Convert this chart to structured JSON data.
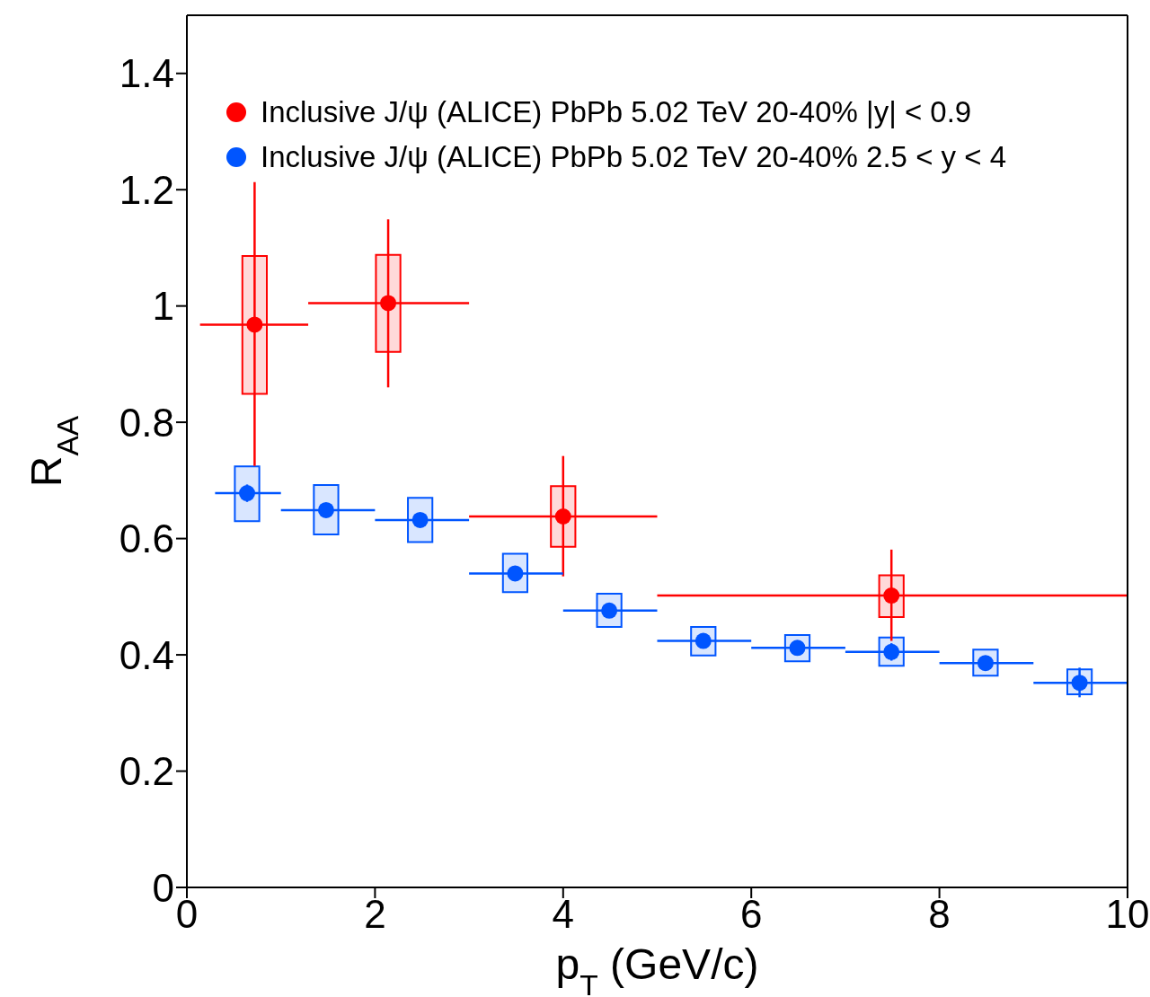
{
  "chart_data": {
    "type": "scatter",
    "xlabel": "p$_{T}$ (GeV/c)",
    "ylabel": "R$_{AA}$",
    "xlim": [
      0,
      10
    ],
    "xticks": [
      0,
      2,
      4,
      6,
      8,
      10
    ],
    "ylim": [
      0,
      1.5
    ],
    "yticks": [
      {
        "value": 0,
        "label": "0"
      },
      {
        "value": 0.2,
        "label": "0.2"
      },
      {
        "value": 0.4,
        "label": "0.4"
      },
      {
        "value": 0.6,
        "label": "0.6"
      },
      {
        "value": 0.8,
        "label": "0.8"
      },
      {
        "value": 1,
        "label": "1"
      },
      {
        "value": 1.2,
        "label": "1.2"
      },
      {
        "value": 1.4,
        "label": "1.4"
      }
    ],
    "grid": false,
    "legend": "top left",
    "marker": "circle",
    "series": [
      {
        "name": "Inclusive J/ψ (ALICE) PbPb 5.02 TeV 20-40% |y| < 0.9",
        "color": "#ff0000",
        "x": [
          0.72,
          2.14,
          4.0,
          7.49
        ],
        "values": [
          0.968,
          1.005,
          0.638,
          0.502
        ],
        "errors": [
          [
            0.725,
            1.213
          ],
          [
            0.86,
            1.149
          ],
          [
            0.535,
            0.742
          ],
          [
            0.424,
            0.581
          ]
        ],
        "xerrors": [
          [
            0.14,
            1.29
          ],
          [
            1.29,
            3.0
          ],
          [
            3.0,
            5.0
          ],
          [
            5.0,
            10.0
          ]
        ]
      },
      {
        "name": "Inclusive J/ψ (ALICE) PbPb 5.02 TeV 20-40% 2.5 < y < 4",
        "color": "#0055ff",
        "x": [
          0.64,
          1.48,
          2.48,
          3.49,
          4.49,
          5.49,
          6.49,
          7.49,
          8.49,
          9.49
        ],
        "values": [
          0.678,
          0.649,
          0.632,
          0.54,
          0.476,
          0.424,
          0.412,
          0.405,
          0.386,
          0.352
        ],
        "errors": [
          [
            0.663,
            0.693
          ],
          [
            0.639,
            0.659
          ],
          [
            0.622,
            0.642
          ],
          [
            0.53,
            0.55
          ],
          [
            0.466,
            0.486
          ],
          [
            0.414,
            0.434
          ],
          [
            0.402,
            0.422
          ],
          [
            0.39,
            0.42
          ],
          [
            0.376,
            0.396
          ],
          [
            0.327,
            0.378
          ]
        ],
        "xerrors": [
          [
            0.3,
            1.0
          ],
          [
            1.0,
            2.0
          ],
          [
            2.0,
            3.0
          ],
          [
            3.0,
            4.0
          ],
          [
            4.0,
            5.0
          ],
          [
            5.0,
            6.0
          ],
          [
            6.0,
            7.0
          ],
          [
            7.0,
            8.0
          ],
          [
            8.0,
            9.0
          ],
          [
            9.0,
            10.0
          ]
        ]
      },
      {
        "type": "bar",
        "color": "#ff0000",
        "x": [
          0.72,
          2.14,
          4.0,
          7.49
        ],
        "base": [
          0.849,
          0.921,
          0.586,
          0.465
        ],
        "values": [
          0.237,
          0.167,
          0.104,
          0.072
        ]
      },
      {
        "type": "bar",
        "color": "#0055ff",
        "x": [
          0.64,
          1.48,
          2.48,
          3.49,
          4.49,
          5.49,
          6.49,
          7.49,
          8.49,
          9.49
        ],
        "base": [
          0.63,
          0.607,
          0.594,
          0.508,
          0.448,
          0.399,
          0.389,
          0.381,
          0.364,
          0.332
        ],
        "values": [
          0.094,
          0.085,
          0.076,
          0.066,
          0.057,
          0.049,
          0.045,
          0.049,
          0.045,
          0.043
        ]
      }
    ]
  }
}
